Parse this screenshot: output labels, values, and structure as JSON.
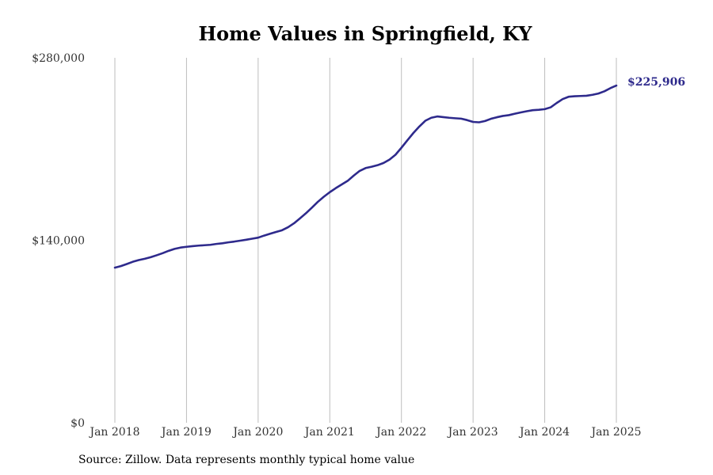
{
  "chart_data": {
    "type": "line",
    "title": "Home Values in Springfield, KY",
    "xlabel": "",
    "ylabel": "",
    "x_tick_labels": [
      "Jan 2018",
      "Jan 2019",
      "Jan 2020",
      "Jan 2021",
      "Jan 2022",
      "Jan 2023",
      "Jan 2024",
      "Jan 2025"
    ],
    "y_tick_labels": [
      "$0",
      "$140,000",
      "$280,000"
    ],
    "y_ticks": [
      0,
      140000,
      280000
    ],
    "ylim": [
      0,
      280000
    ],
    "xlim": [
      "2017-09",
      "2025-04"
    ],
    "grid": "vertical",
    "line_color": "#2e2a8c",
    "end_label": "$225,906",
    "series": [
      {
        "x": [
          "2018-01",
          "2018-02",
          "2018-03",
          "2018-04",
          "2018-05",
          "2018-06",
          "2018-07",
          "2018-08",
          "2018-09",
          "2018-10",
          "2018-11",
          "2018-12",
          "2019-01",
          "2019-02",
          "2019-03",
          "2019-04",
          "2019-05",
          "2019-06",
          "2019-07",
          "2019-08",
          "2019-09",
          "2019-10",
          "2019-11",
          "2019-12",
          "2020-01",
          "2020-02",
          "2020-03",
          "2020-04",
          "2020-05",
          "2020-06",
          "2020-07",
          "2020-08",
          "2020-09",
          "2020-10",
          "2020-11",
          "2020-12",
          "2021-01",
          "2021-02",
          "2021-03",
          "2021-04",
          "2021-05",
          "2021-06",
          "2021-07",
          "2021-08",
          "2021-09",
          "2021-10",
          "2021-11",
          "2021-12",
          "2022-01",
          "2022-02",
          "2022-03",
          "2022-04",
          "2022-05",
          "2022-06",
          "2022-07",
          "2022-08",
          "2022-09",
          "2022-10",
          "2022-11",
          "2022-12",
          "2023-01",
          "2023-02",
          "2023-03",
          "2023-04",
          "2023-05",
          "2023-06",
          "2023-07",
          "2023-08",
          "2023-09",
          "2023-10",
          "2023-11",
          "2023-12",
          "2024-01",
          "2024-02",
          "2024-03",
          "2024-04",
          "2024-05",
          "2024-06",
          "2024-07",
          "2024-08",
          "2024-09",
          "2024-10",
          "2024-11",
          "2024-12",
          "2025-01"
        ],
        "values": [
          119000,
          120200,
          121800,
          123500,
          124800,
          125800,
          127000,
          128500,
          130100,
          131900,
          133400,
          134400,
          135000,
          135500,
          135900,
          136200,
          136500,
          137200,
          137700,
          138400,
          139000,
          139700,
          140400,
          141200,
          142000,
          143600,
          145000,
          146400,
          147700,
          150000,
          153000,
          156800,
          160700,
          165000,
          169500,
          173400,
          176900,
          180000,
          182800,
          185600,
          189600,
          193200,
          195400,
          196400,
          197600,
          199300,
          201900,
          205600,
          211000,
          216700,
          222300,
          227300,
          231700,
          234000,
          235000,
          234500,
          234000,
          233600,
          233300,
          232200,
          230800,
          230500,
          231500,
          233200,
          234400,
          235400,
          236000,
          237100,
          238100,
          239000,
          239800,
          240100,
          240600,
          242000,
          245300,
          248300,
          250100,
          250500,
          250700,
          250900,
          251600,
          252600,
          254300,
          256700,
          225906
        ]
      }
    ]
  },
  "footer": {
    "source": "Source: Zillow. Data represents monthly typical home value"
  }
}
